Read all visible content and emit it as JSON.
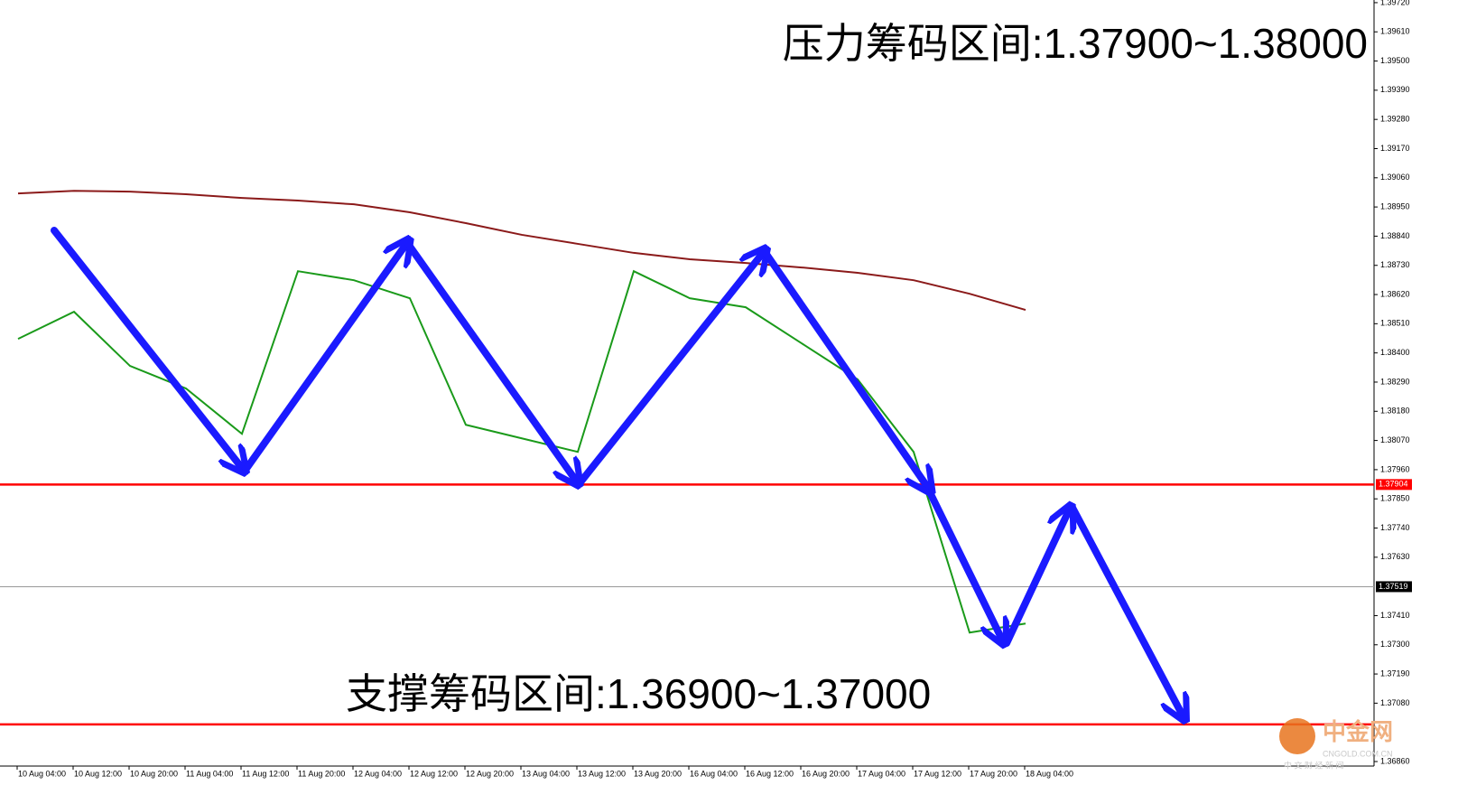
{
  "chart_data": {
    "type": "line",
    "annotations": [
      "压力筹码区间:1.37900~1.38000",
      "支撑筹码区间:1.36900~1.37000"
    ],
    "watermark": [
      "中金网",
      "CNGOLD.COM.CN",
      "中 文 财 经 新 闻"
    ],
    "categories": [
      "10 Aug 04:00",
      "10 Aug 12:00",
      "10 Aug 20:00",
      "11 Aug 04:00",
      "11 Aug 12:00",
      "11 Aug 20:00",
      "12 Aug 04:00",
      "12 Aug 12:00",
      "12 Aug 20:00",
      "13 Aug 04:00",
      "13 Aug 12:00",
      "13 Aug 20:00",
      "16 Aug 04:00",
      "16 Aug 12:00",
      "16 Aug 20:00",
      "17 Aug 04:00",
      "17 Aug 12:00",
      "17 Aug 20:00",
      "18 Aug 04:00"
    ],
    "series": [
      {
        "color": "#1a9a1a",
        "values": [
          1.38453,
          1.38555,
          1.38351,
          1.38266,
          1.38095,
          1.38708,
          1.38674,
          1.38606,
          1.38129,
          1.38078,
          1.38027,
          1.38708,
          1.38606,
          1.38572,
          1.38436,
          1.383,
          1.38027,
          1.37346,
          1.3738
        ]
      },
      {
        "color": "#8b1a1a",
        "values": [
          1.39001,
          1.39011,
          1.39008,
          1.38998,
          1.38984,
          1.38974,
          1.3896,
          1.3893,
          1.38889,
          1.38845,
          1.38811,
          1.38777,
          1.38753,
          1.38739,
          1.38722,
          1.38702,
          1.38674,
          1.38623,
          1.38562
        ]
      }
    ],
    "price_lines": [
      {
        "value": 1.37904,
        "color": "#ff0000",
        "box": true
      },
      {
        "value": 1.37519,
        "color": "#999999",
        "box": true
      },
      {
        "value": 1.37,
        "color": "#ff0000",
        "box": false
      }
    ],
    "ylim": [
      1.36843,
      1.3973
    ],
    "yticks": [
      {
        "value": 1.3972,
        "label": "1.39720"
      },
      {
        "value": 1.3961,
        "label": "1.39610"
      },
      {
        "value": 1.395,
        "label": "1.39500"
      },
      {
        "value": 1.3939,
        "label": "1.39390"
      },
      {
        "value": 1.3928,
        "label": "1.39280"
      },
      {
        "value": 1.3917,
        "label": "1.39170"
      },
      {
        "value": 1.3906,
        "label": "1.39060"
      },
      {
        "value": 1.3895,
        "label": "1.38950"
      },
      {
        "value": 1.3884,
        "label": "1.38840"
      },
      {
        "value": 1.3873,
        "label": "1.38730"
      },
      {
        "value": 1.3862,
        "label": "1.38620"
      },
      {
        "value": 1.3851,
        "label": "1.38510"
      },
      {
        "value": 1.384,
        "label": "1.38400"
      },
      {
        "value": 1.3829,
        "label": "1.38290"
      },
      {
        "value": 1.3818,
        "label": "1.38180"
      },
      {
        "value": 1.3807,
        "label": "1.38070"
      },
      {
        "value": 1.3796,
        "label": "1.37960"
      },
      {
        "value": 1.3785,
        "label": "1.37850"
      },
      {
        "value": 1.3774,
        "label": "1.37740"
      },
      {
        "value": 1.3763,
        "label": "1.37630"
      },
      {
        "value": 1.3741,
        "label": "1.37410"
      },
      {
        "value": 1.373,
        "label": "1.37300"
      },
      {
        "value": 1.3719,
        "label": "1.37190"
      },
      {
        "value": 1.3708,
        "label": "1.37080"
      },
      {
        "value": 1.3686,
        "label": "1.36860"
      }
    ]
  }
}
